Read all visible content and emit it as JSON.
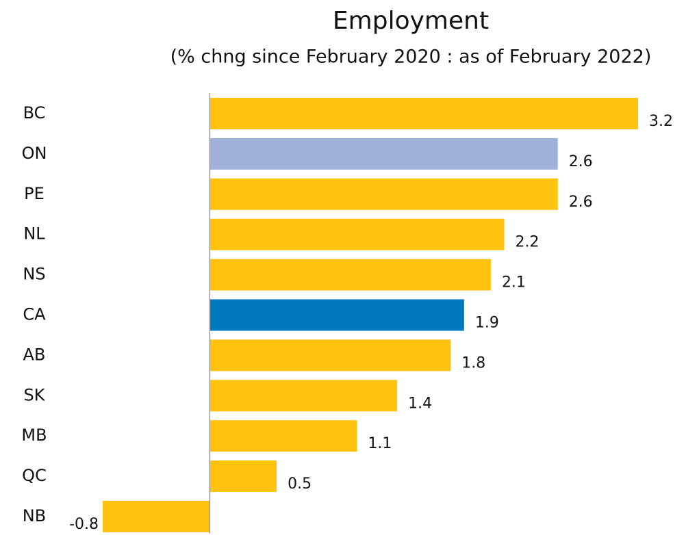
{
  "chart_data": {
    "type": "hbar",
    "title": "Employment",
    "subtitle": "(% chng since February 2020 : as of February 2022)",
    "categories": [
      "BC",
      "ON",
      "PE",
      "NL",
      "NS",
      "CA",
      "AB",
      "SK",
      "MB",
      "QC",
      "NB"
    ],
    "values": [
      3.2,
      2.6,
      2.6,
      2.2,
      2.1,
      1.9,
      1.8,
      1.4,
      1.1,
      0.5,
      -0.8
    ],
    "colors": [
      "#ffc20e",
      "#9fb1d8",
      "#ffc20e",
      "#ffc20e",
      "#ffc20e",
      "#0079c1",
      "#ffc20e",
      "#ffc20e",
      "#ffc20e",
      "#ffc20e",
      "#ffc20e"
    ],
    "xlim": [
      -0.8,
      3.2
    ]
  }
}
